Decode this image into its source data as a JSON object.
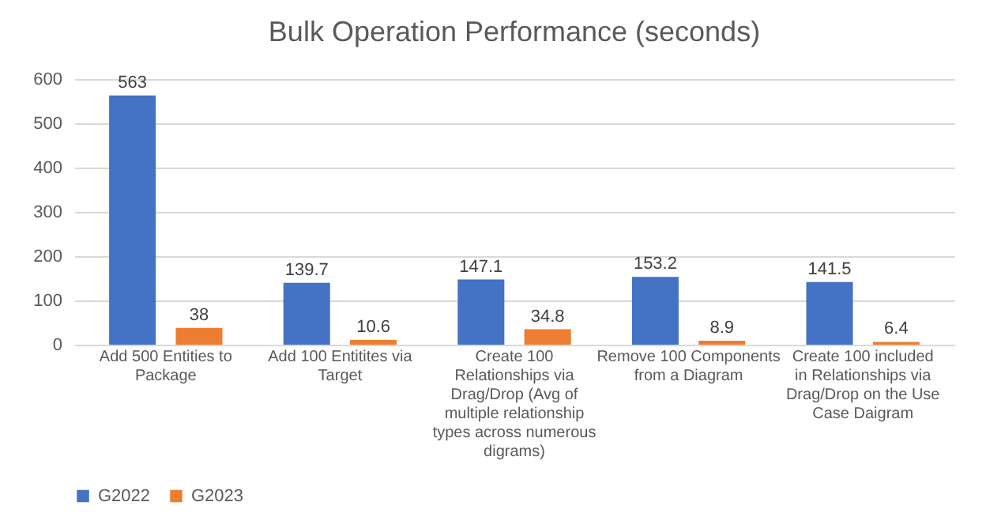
{
  "chart_data": {
    "type": "bar",
    "title": "Bulk Operation Performance (seconds)",
    "categories": [
      "Add 500 Entities to Package",
      "Add 100 Entitites via Target",
      "Create 100 Relationships via Drag/Drop (Avg of multiple relationship types across numerous digrams)",
      "Remove 100 Components from a Diagram",
      "Create 100 included in Relationships via Drag/Drop on the Use Case Daigram"
    ],
    "series": [
      {
        "name": "G2022",
        "color": "#4472c4",
        "values": [
          563,
          139.7,
          147.1,
          153.2,
          141.5
        ]
      },
      {
        "name": "G2023",
        "color": "#ed7d31",
        "values": [
          38,
          10.6,
          34.8,
          8.9,
          6.4
        ]
      }
    ],
    "ylim": [
      0,
      600
    ],
    "yticks": [
      0,
      100,
      200,
      300,
      400,
      500,
      600
    ],
    "grid": "y",
    "legend": "bottom",
    "data_labels": true
  }
}
